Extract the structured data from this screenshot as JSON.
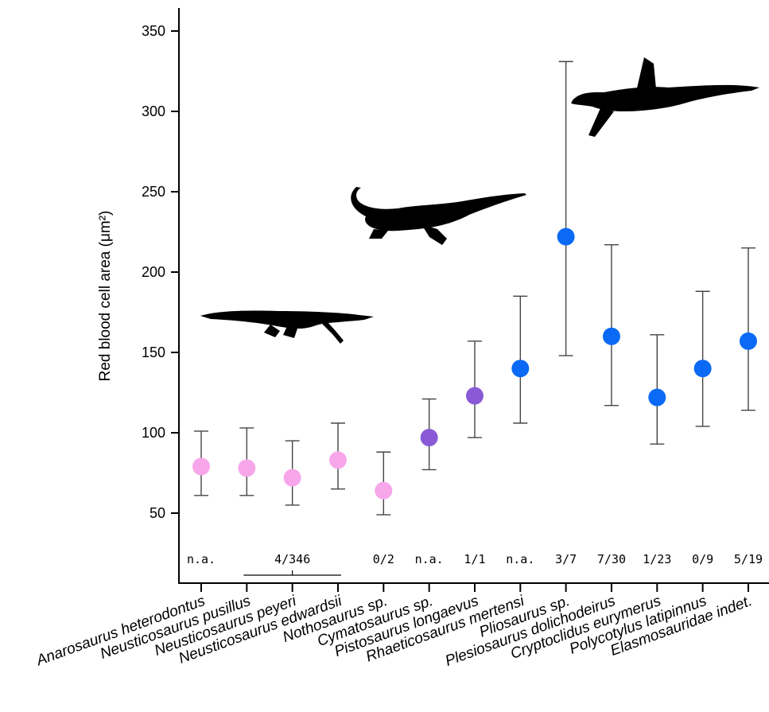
{
  "chart_data": {
    "type": "scatter",
    "ylabel": "Red blood cell area (μm²)",
    "ylim": [
      0,
      360
    ],
    "y_ticks": [
      50,
      100,
      150,
      200,
      250,
      300,
      350
    ],
    "grid": false,
    "categories": [
      "Anarosaurus heterodontus",
      "Neusticosaurus pusillus",
      "Neusticosaurus peyeri",
      "Neusticosaurus edwardsii",
      "Nothosaurus sp.",
      "Cymatosaurus sp.",
      "Pistosaurus longaevus",
      "Rhaeticosaurus mertensi",
      "Pliosaurus sp.",
      "Plesiosaurus dolichodeirus",
      "Cryptoclidus eurymerus",
      "Polycotylus latipinnus",
      "Elasmosauridae indet."
    ],
    "values": [
      79,
      78,
      72,
      83,
      64,
      97,
      123,
      140,
      222,
      160,
      122,
      140,
      157
    ],
    "error_low": [
      61,
      61,
      55,
      65,
      49,
      77,
      97,
      106,
      148,
      117,
      93,
      104,
      114
    ],
    "error_high": [
      101,
      103,
      95,
      106,
      88,
      121,
      157,
      185,
      331,
      217,
      161,
      188,
      215
    ],
    "group_colors": [
      "#f7a6ea",
      "#f7a6ea",
      "#f7a6ea",
      "#f7a6ea",
      "#f7a6ea",
      "#8a5ad6",
      "#8a5ad6",
      "#0a6af5",
      "#0a6af5",
      "#0a6af5",
      "#0a6af5",
      "#0a6af5",
      "#0a6af5"
    ],
    "counts": [
      {
        "label": "n.a.",
        "from": 0,
        "to": 0
      },
      {
        "label": "4/346",
        "from": 1,
        "to": 3
      },
      {
        "label": "0/2",
        "from": 4,
        "to": 4
      },
      {
        "label": "n.a.",
        "from": 5,
        "to": 5
      },
      {
        "label": "1/1",
        "from": 6,
        "to": 6
      },
      {
        "label": "n.a.",
        "from": 7,
        "to": 7
      },
      {
        "label": "3/7",
        "from": 8,
        "to": 8
      },
      {
        "label": "7/30",
        "from": 9,
        "to": 9
      },
      {
        "label": "1/23",
        "from": 10,
        "to": 10
      },
      {
        "label": "0/9",
        "from": 11,
        "to": 11
      },
      {
        "label": "5/19",
        "from": 12,
        "to": 12
      }
    ],
    "silhouettes": [
      "nothosaur-silhouette",
      "pistosaur-silhouette",
      "plesiosaur-silhouette"
    ]
  }
}
